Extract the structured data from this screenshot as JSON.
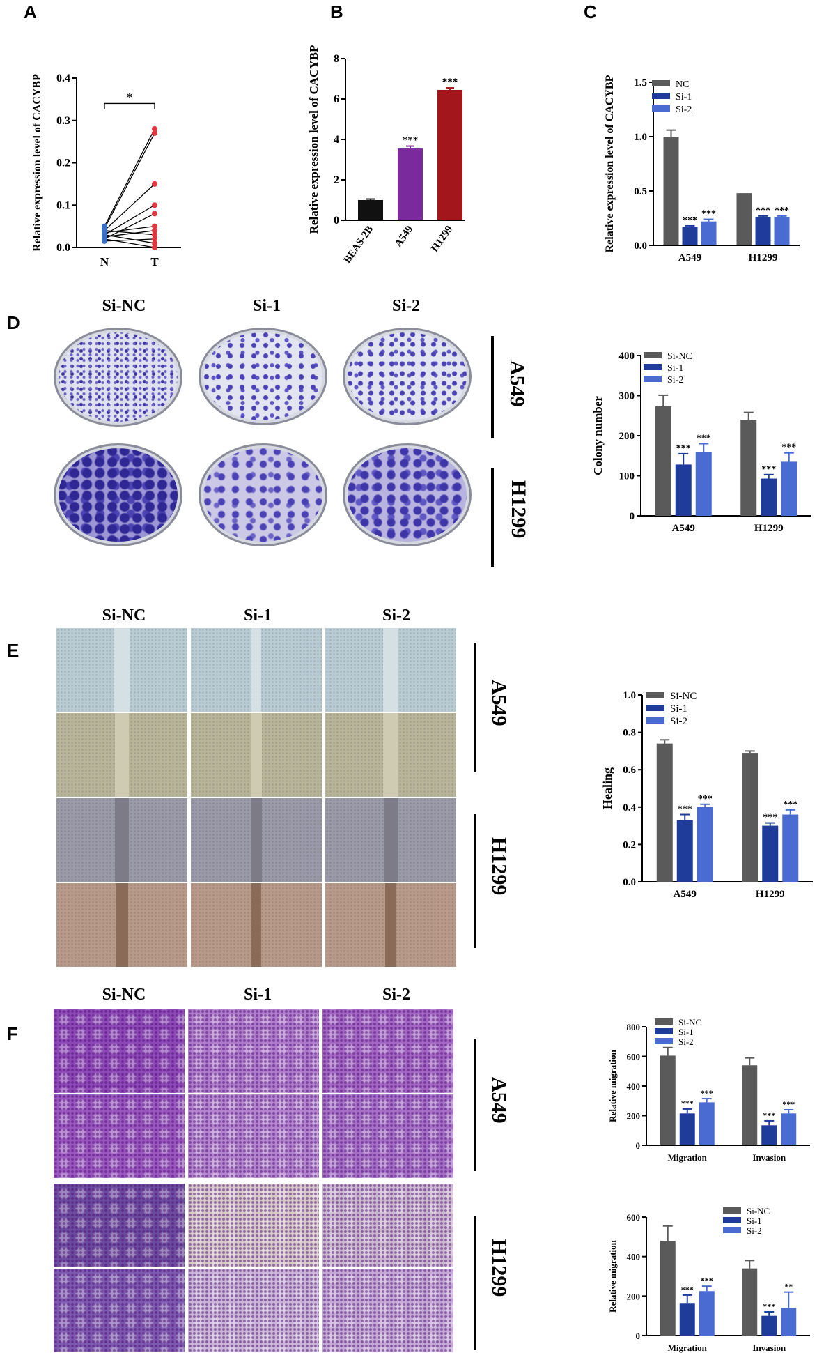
{
  "panels": {
    "A": "A",
    "B": "B",
    "C": "C",
    "D": "D",
    "E": "E",
    "F": "F"
  },
  "conditions": [
    "Si-NC",
    "Si-1",
    "Si-2"
  ],
  "cell_lines": [
    "A549",
    "H1299"
  ],
  "colors": {
    "nc": "#5a5a5a",
    "si1": "#1f3c9b",
    "si2": "#4a6bd1",
    "beas": "#111111",
    "a549": "#7b2a9e",
    "h1299": "#a3171c",
    "paired_n": "#3a6fc4",
    "paired_t": "#e0363f"
  },
  "chart_data": [
    {
      "id": "A",
      "type": "scatter",
      "ylabel": "Relative expression level of CACYBP",
      "categories": [
        "N",
        "T"
      ],
      "ylim": [
        0,
        0.4
      ],
      "yticks": [
        "0.0",
        "0.1",
        "0.2",
        "0.3",
        "0.4"
      ],
      "sig": "*",
      "pairs": [
        [
          0.05,
          0.28
        ],
        [
          0.045,
          0.27
        ],
        [
          0.04,
          0.15
        ],
        [
          0.03,
          0.1
        ],
        [
          0.02,
          0.08
        ],
        [
          0.035,
          0.05
        ],
        [
          0.025,
          0.04
        ],
        [
          0.04,
          0.03
        ],
        [
          0.015,
          0.02
        ],
        [
          0.03,
          0.01
        ],
        [
          0.02,
          0.0
        ]
      ]
    },
    {
      "id": "B",
      "type": "bar",
      "ylabel": "Relative expression level of CACYBP",
      "categories": [
        "BEAS-2B",
        "A549",
        "H1299"
      ],
      "values": [
        1.0,
        3.55,
        6.45
      ],
      "errors": [
        0.05,
        0.12,
        0.1
      ],
      "ylim": [
        0,
        8
      ],
      "yticks": [
        "0",
        "2",
        "4",
        "6",
        "8"
      ],
      "labels": [
        "",
        "***",
        "***"
      ]
    },
    {
      "id": "C",
      "type": "bar",
      "ylabel": "Relative expression level of CACYBP",
      "categories": [
        "A549",
        "H1299"
      ],
      "ylim": [
        0,
        1.5
      ],
      "yticks": [
        "0.0",
        "0.5",
        "1.0",
        "1.5"
      ],
      "series": [
        {
          "name": "NC",
          "values": [
            1.0,
            0.48
          ],
          "errors": [
            0.06,
            0.0
          ]
        },
        {
          "name": "Si-1",
          "values": [
            0.17,
            0.26
          ],
          "errors": [
            0.01,
            0.01
          ]
        },
        {
          "name": "Si-2",
          "values": [
            0.22,
            0.26
          ],
          "errors": [
            0.02,
            0.01
          ]
        }
      ],
      "labels": [
        [
          "",
          "***",
          "***"
        ],
        [
          "",
          "***",
          "***"
        ]
      ]
    },
    {
      "id": "D",
      "type": "bar",
      "ylabel": "Colony number",
      "categories": [
        "A549",
        "H1299"
      ],
      "ylim": [
        0,
        400
      ],
      "yticks": [
        "0",
        "100",
        "200",
        "300",
        "400"
      ],
      "series": [
        {
          "name": "Si-NC",
          "values": [
            273,
            240
          ],
          "errors": [
            28,
            18
          ]
        },
        {
          "name": "Si-1",
          "values": [
            128,
            93
          ],
          "errors": [
            27,
            10
          ]
        },
        {
          "name": "Si-2",
          "values": [
            160,
            135
          ],
          "errors": [
            20,
            22
          ]
        }
      ],
      "labels": [
        [
          "",
          "***",
          "***"
        ],
        [
          "",
          "***",
          "***"
        ]
      ]
    },
    {
      "id": "E",
      "type": "bar",
      "ylabel": "Healing",
      "categories": [
        "A549",
        "H1299"
      ],
      "ylim": [
        0,
        1.0
      ],
      "yticks": [
        "0.0",
        "0.2",
        "0.4",
        "0.6",
        "0.8",
        "1.0"
      ],
      "series": [
        {
          "name": "Si-NC",
          "values": [
            0.74,
            0.69
          ],
          "errors": [
            0.02,
            0.01
          ]
        },
        {
          "name": "Si-1",
          "values": [
            0.33,
            0.3
          ],
          "errors": [
            0.03,
            0.015
          ]
        },
        {
          "name": "Si-2",
          "values": [
            0.4,
            0.36
          ],
          "errors": [
            0.015,
            0.025
          ]
        }
      ],
      "labels": [
        [
          "",
          "***",
          "***"
        ],
        [
          "",
          "***",
          "***"
        ]
      ]
    },
    {
      "id": "F1",
      "type": "bar",
      "ylabel": "Relative migration",
      "categories": [
        "Migration",
        "Invasion"
      ],
      "ylim": [
        0,
        800
      ],
      "yticks": [
        "0",
        "200",
        "400",
        "600",
        "800"
      ],
      "series": [
        {
          "name": "Si-NC",
          "values": [
            605,
            540
          ],
          "errors": [
            55,
            50
          ]
        },
        {
          "name": "Si-1",
          "values": [
            215,
            135
          ],
          "errors": [
            30,
            30
          ]
        },
        {
          "name": "Si-2",
          "values": [
            290,
            215
          ],
          "errors": [
            25,
            25
          ]
        }
      ],
      "labels": [
        [
          "",
          "***",
          "***"
        ],
        [
          "",
          "***",
          "***"
        ]
      ]
    },
    {
      "id": "F2",
      "type": "bar",
      "ylabel": "Relative migration",
      "categories": [
        "Migration",
        "Invasion"
      ],
      "ylim": [
        0,
        600
      ],
      "yticks": [
        "0",
        "200",
        "400",
        "600"
      ],
      "series": [
        {
          "name": "Si-NC",
          "values": [
            480,
            340
          ],
          "errors": [
            75,
            40
          ]
        },
        {
          "name": "Si-1",
          "values": [
            165,
            100
          ],
          "errors": [
            40,
            20
          ]
        },
        {
          "name": "Si-2",
          "values": [
            225,
            140
          ],
          "errors": [
            25,
            80
          ]
        }
      ],
      "labels": [
        [
          "",
          "***",
          "***"
        ],
        [
          "",
          "***",
          "**"
        ]
      ]
    }
  ]
}
